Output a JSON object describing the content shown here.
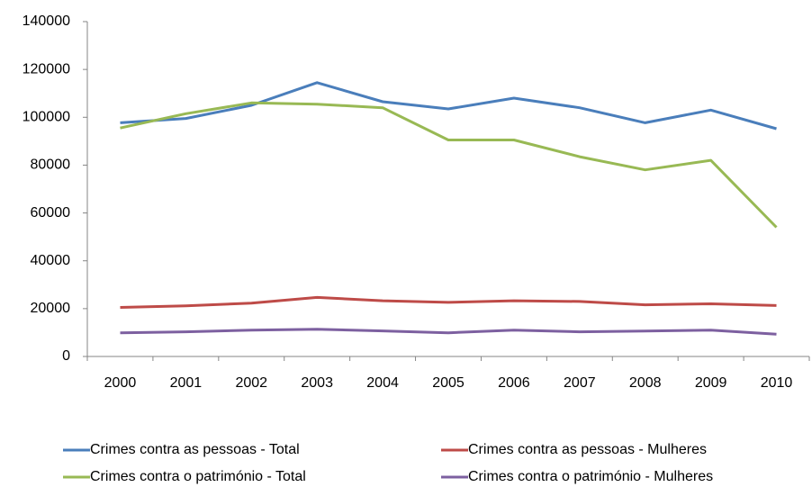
{
  "chart_data": {
    "type": "line",
    "categories": [
      "2000",
      "2001",
      "2002",
      "2003",
      "2004",
      "2005",
      "2006",
      "2007",
      "2008",
      "2009",
      "2010"
    ],
    "series": [
      {
        "name": "Crimes contra as pessoas -  Total",
        "color": "#4a7ebb",
        "values": [
          97700,
          99500,
          105000,
          114500,
          106500,
          103500,
          108000,
          104000,
          97700,
          103000,
          95200
        ]
      },
      {
        "name": "Crimes contra as pessoas -  Mulheres",
        "color": "#be4b48",
        "values": [
          20500,
          21200,
          22300,
          24700,
          23300,
          22600,
          23300,
          23000,
          21600,
          22000,
          21300
        ]
      },
      {
        "name": "Crimes contra o património -  Total",
        "color": "#98b954",
        "values": [
          95500,
          101500,
          106000,
          105500,
          104000,
          90500,
          90500,
          83500,
          78000,
          82000,
          54000
        ]
      },
      {
        "name": "Crimes contra o património -  Mulheres",
        "color": "#7d60a0",
        "values": [
          9900,
          10300,
          11000,
          11400,
          10700,
          9900,
          11000,
          10300,
          10600,
          11000,
          9300
        ]
      }
    ],
    "ylim": [
      0,
      140000
    ],
    "yticks": [
      0,
      20000,
      40000,
      60000,
      80000,
      100000,
      120000,
      140000
    ],
    "grid": false,
    "legend": "bottom"
  }
}
